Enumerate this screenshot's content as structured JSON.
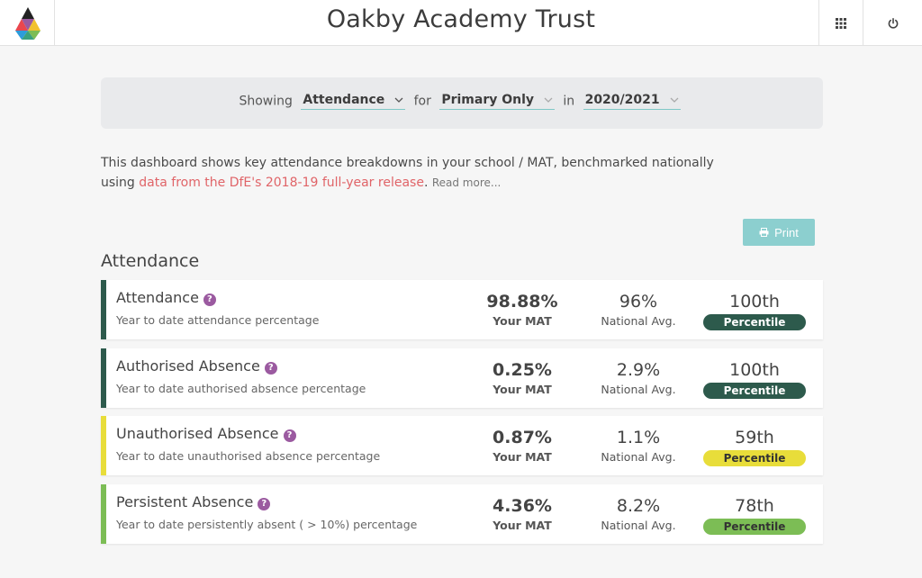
{
  "header": {
    "title": "Oakby Academy Trust",
    "logo_icon": "triangle-logo-icon",
    "grid_icon": "apps-grid-icon",
    "power_icon": "power-icon"
  },
  "filters": {
    "showing_label": "Showing",
    "metric_value": "Attendance",
    "for_label": "for",
    "phase_value": "Primary Only",
    "in_label": "in",
    "year_value": "2020/2021"
  },
  "intro": {
    "text_before": "This dashboard shows key attendance breakdowns in your school / MAT, benchmarked nationally using ",
    "link_text": "data from the DfE's 2018-19 full-year release",
    "text_after": ".",
    "read_more": "Read more..."
  },
  "print_label": "Print",
  "section_title": "Attendance",
  "colors": {
    "accent_teal": "#8ccfcf",
    "dark_green": "#2d5a4c",
    "yellow": "#e8dd3a",
    "light_green": "#7cbd55",
    "link_red": "#e06468",
    "help_purple": "#9b5aa0"
  },
  "metrics": [
    {
      "title": "Attendance",
      "desc": "Year to date attendance percentage",
      "your_value": "98.88%",
      "your_label": "Your MAT",
      "national_value": "96%",
      "national_label": "National Avg.",
      "percentile": "100th",
      "percentile_label": "Percentile",
      "color": "#2d5a4c",
      "text_color": "#ffffff"
    },
    {
      "title": "Authorised Absence",
      "desc": "Year to date authorised absence percentage",
      "your_value": "0.25%",
      "your_label": "Your MAT",
      "national_value": "2.9%",
      "national_label": "National Avg.",
      "percentile": "100th",
      "percentile_label": "Percentile",
      "color": "#2d5a4c",
      "text_color": "#ffffff"
    },
    {
      "title": "Unauthorised Absence",
      "desc": "Year to date unauthorised absence percentage",
      "your_value": "0.87%",
      "your_label": "Your MAT",
      "national_value": "1.1%",
      "national_label": "National Avg.",
      "percentile": "59th",
      "percentile_label": "Percentile",
      "color": "#e8dd3a",
      "text_color": "#333333"
    },
    {
      "title": "Persistent Absence",
      "desc": "Year to date persistently absent ( > 10%) percentage",
      "your_value": "4.36%",
      "your_label": "Your MAT",
      "national_value": "8.2%",
      "national_label": "National Avg.",
      "percentile": "78th",
      "percentile_label": "Percentile",
      "color": "#7cbd55",
      "text_color": "#333333"
    }
  ]
}
